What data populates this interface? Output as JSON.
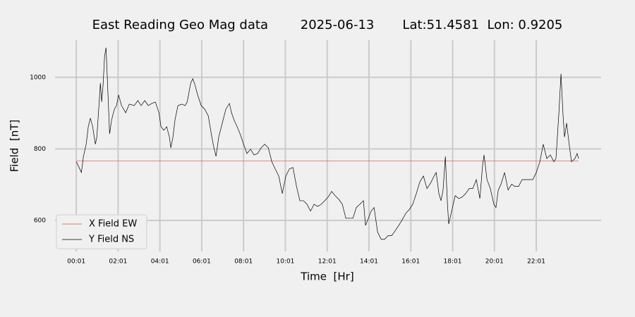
{
  "chart_data": {
    "type": "line",
    "title": "East Reading Geo Mag data        2025-06-13       Lat:51.4581  Lon: 0.9205",
    "xlabel": "Time  [Hr]",
    "ylabel": "Field  [nT]",
    "xlim": [
      -1.0,
      25.12
    ],
    "ylim": [
      513,
      1104
    ],
    "xticks": [
      {
        "value": 0.0167,
        "label": "00:01"
      },
      {
        "value": 2.0167,
        "label": "02:01"
      },
      {
        "value": 4.0167,
        "label": "04:01"
      },
      {
        "value": 6.0167,
        "label": "06:01"
      },
      {
        "value": 8.0167,
        "label": "08:01"
      },
      {
        "value": 10.0167,
        "label": "10:01"
      },
      {
        "value": 12.0167,
        "label": "12:01"
      },
      {
        "value": 14.0167,
        "label": "14:01"
      },
      {
        "value": 16.0167,
        "label": "16:01"
      },
      {
        "value": 18.0167,
        "label": "18:01"
      },
      {
        "value": 20.0167,
        "label": "20:01"
      },
      {
        "value": 22.0167,
        "label": "22:01"
      }
    ],
    "yticks": [
      600,
      800,
      1000
    ],
    "grid": true,
    "legend": "lower left",
    "series": [
      {
        "name": "X Field EW",
        "color": "#e24a33",
        "x": [
          0.02,
          24.04
        ],
        "values": [
          766,
          766
        ]
      },
      {
        "name": "Y Field NS",
        "color": "#000000",
        "x": [
          0.02,
          0.15,
          0.26,
          0.36,
          0.49,
          0.59,
          0.69,
          0.8,
          0.93,
          1.0,
          1.1,
          1.17,
          1.23,
          1.3,
          1.37,
          1.44,
          1.5,
          1.61,
          1.71,
          1.84,
          1.94,
          2.04,
          2.18,
          2.38,
          2.55,
          2.79,
          2.96,
          3.12,
          3.29,
          3.46,
          3.63,
          3.8,
          3.97,
          4.07,
          4.2,
          4.34,
          4.47,
          4.54,
          4.64,
          4.74,
          4.88,
          5.08,
          5.22,
          5.32,
          5.49,
          5.59,
          5.69,
          5.82,
          5.99,
          6.16,
          6.33,
          6.5,
          6.6,
          6.7,
          6.83,
          7.0,
          7.17,
          7.34,
          7.44,
          7.58,
          7.71,
          7.85,
          8.02,
          8.18,
          8.35,
          8.52,
          8.69,
          8.86,
          9.03,
          9.2,
          9.37,
          9.53,
          9.7,
          9.87,
          10.04,
          10.21,
          10.38,
          10.55,
          10.71,
          10.88,
          11.05,
          11.22,
          11.39,
          11.56,
          11.73,
          11.9,
          12.06,
          12.23,
          12.4,
          12.57,
          12.74,
          12.91,
          13.08,
          13.25,
          13.41,
          13.58,
          13.75,
          13.85,
          13.99,
          14.12,
          14.26,
          14.43,
          14.6,
          14.76,
          14.93,
          15.1,
          15.27,
          15.44,
          15.61,
          15.78,
          15.94,
          16.11,
          16.28,
          16.45,
          16.62,
          16.79,
          16.96,
          17.13,
          17.23,
          17.36,
          17.46,
          17.56,
          17.67,
          17.77,
          17.83,
          17.97,
          18.14,
          18.31,
          18.47,
          18.64,
          18.81,
          18.98,
          19.15,
          19.32,
          19.45,
          19.52,
          19.66,
          19.82,
          19.99,
          20.09,
          20.2,
          20.33,
          20.5,
          20.67,
          20.84,
          21.0,
          21.17,
          21.34,
          21.51,
          21.68,
          21.85,
          22.02,
          22.19,
          22.35,
          22.52,
          22.69,
          22.86,
          22.96,
          23.1,
          23.2,
          23.3,
          23.37,
          23.47,
          23.57,
          23.7,
          23.87,
          23.97,
          24.04
        ],
        "values": [
          764,
          748,
          734,
          779,
          813,
          862,
          886,
          862,
          813,
          833,
          921,
          984,
          931,
          980,
          1059,
          1083,
          1000,
          842,
          882,
          911,
          921,
          951,
          921,
          901,
          925,
          921,
          935,
          921,
          935,
          921,
          927,
          931,
          901,
          862,
          852,
          862,
          833,
          803,
          833,
          882,
          921,
          925,
          921,
          931,
          984,
          996,
          980,
          951,
          921,
          911,
          892,
          833,
          803,
          779,
          833,
          872,
          911,
          927,
          901,
          878,
          862,
          842,
          813,
          787,
          799,
          783,
          787,
          803,
          813,
          803,
          764,
          744,
          724,
          675,
          724,
          744,
          748,
          695,
          655,
          655,
          645,
          626,
          645,
          639,
          645,
          655,
          665,
          681,
          669,
          659,
          645,
          606,
          606,
          606,
          636,
          645,
          655,
          586,
          606,
          626,
          636,
          567,
          547,
          547,
          557,
          557,
          571,
          586,
          602,
          620,
          630,
          645,
          675,
          708,
          724,
          689,
          704,
          724,
          734,
          675,
          655,
          685,
          779,
          645,
          590,
          626,
          669,
          661,
          665,
          675,
          689,
          689,
          714,
          661,
          754,
          783,
          714,
          689,
          645,
          636,
          685,
          701,
          734,
          685,
          701,
          695,
          695,
          714,
          714,
          714,
          714,
          734,
          764,
          813,
          773,
          783,
          764,
          773,
          901,
          1010,
          892,
          833,
          872,
          823,
          764,
          773,
          787,
          773
        ]
      }
    ]
  }
}
